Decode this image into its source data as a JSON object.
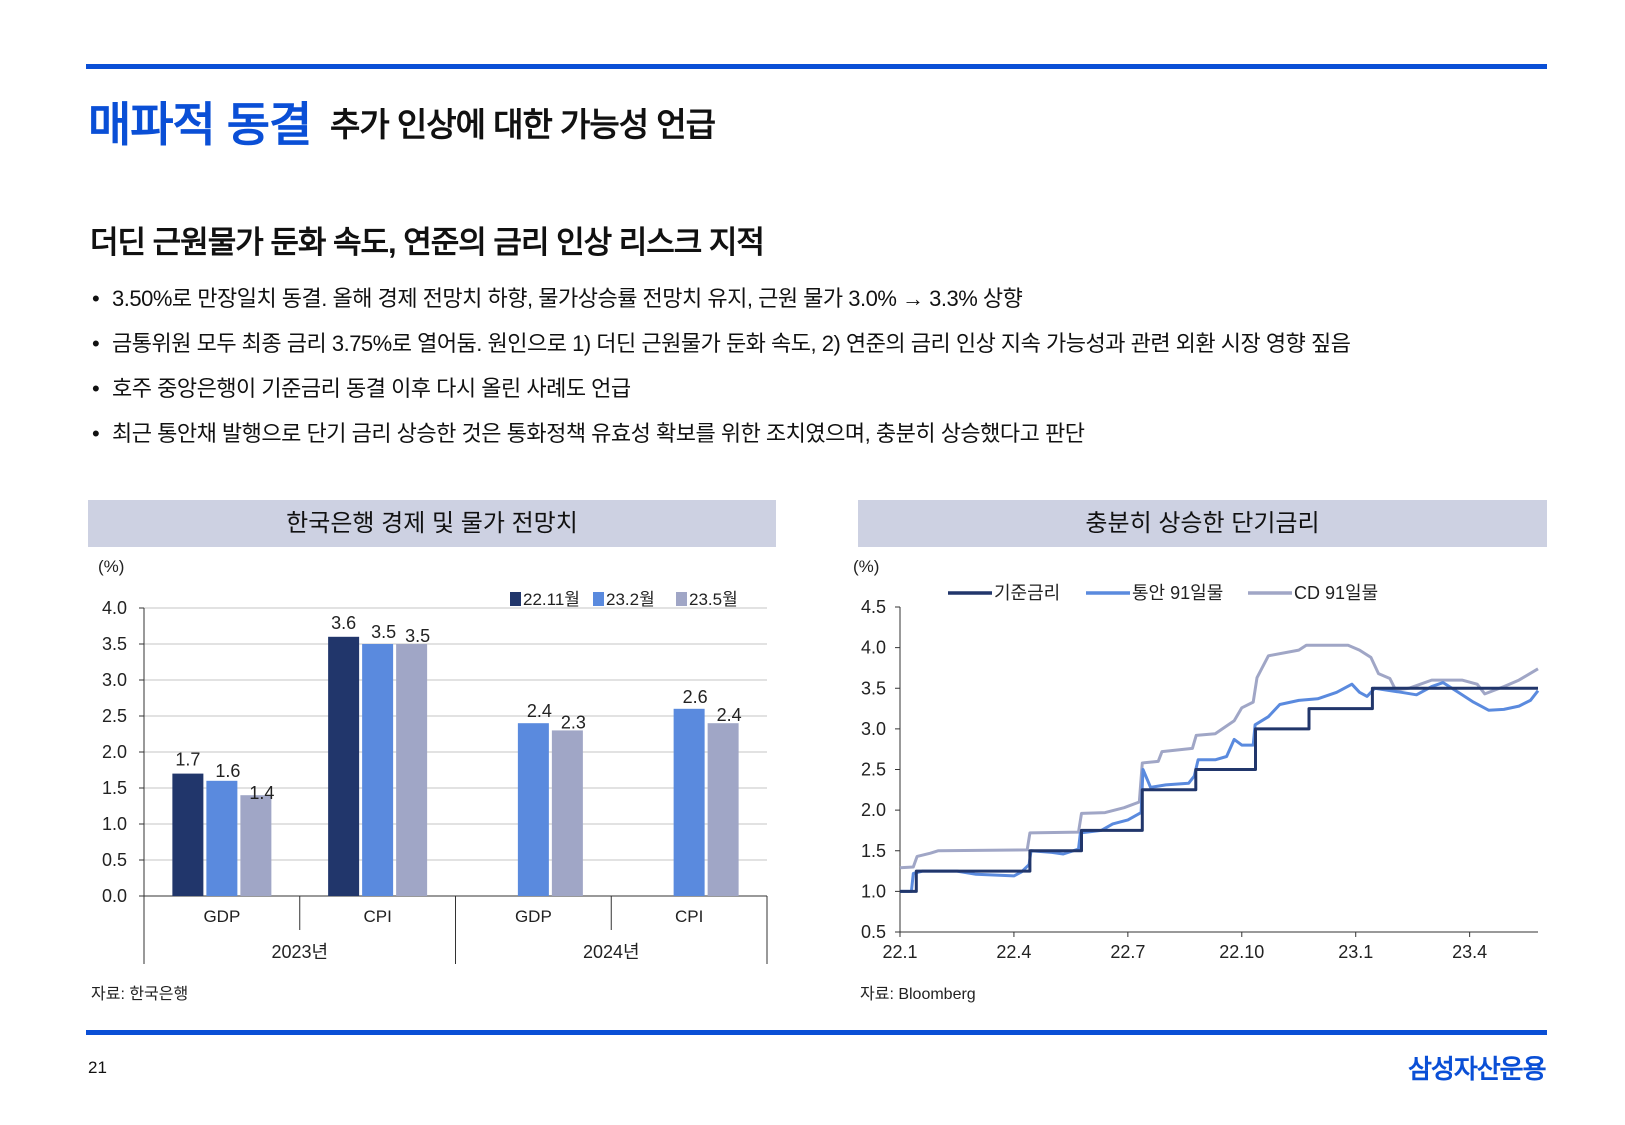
{
  "header": {
    "title": "매파적 동결",
    "subtitle": "추가 인상에 대한 가능성 언급"
  },
  "section_heading": "더딘 근원물가 둔화 속도, 연준의 금리 인상 리스크 지적",
  "bullets": [
    "3.50%로 만장일치 동결. 올해 경제 전망치 하향, 물가상승률 전망치 유지, 근원 물가 3.0% →  3.3% 상향",
    "금통위원 모두 최종 금리 3.75%로 열어둠. 원인으로 1) 더딘 근원물가 둔화 속도, 2) 연준의 금리 인상 지속 가능성과 관련 외환 시장 영향 짚음",
    "호주 중앙은행이 기준금리 동결 이후 다시 올린 사례도 언급",
    "최근 통안채 발행으로 단기 금리 상승한 것은 통화정책 유효성 확보를 위한 조치였으며, 충분히 상승했다고 판단"
  ],
  "bullet_marker": "•",
  "footer": {
    "page_number": "21",
    "logo_text": "삼성자산운용"
  },
  "colors": {
    "brand": "#0a4fd6",
    "navy": "#21366b",
    "blue": "#5a8ade",
    "gray": "#a0a6c6",
    "title_bg": "#cdd1e2"
  },
  "chart_data": [
    {
      "type": "bar",
      "title": "한국은행 경제 및 물가 전망치",
      "ylabel": "(%)",
      "source": "자료: 한국은행",
      "ylim": [
        0,
        4.0
      ],
      "yticks": [
        "0.0",
        "0.5",
        "1.0",
        "1.5",
        "2.0",
        "2.5",
        "3.0",
        "3.5",
        "4.0"
      ],
      "categories": [
        "GDP",
        "CPI",
        "GDP",
        "CPI"
      ],
      "groups": [
        "2023년",
        "2024년"
      ],
      "legend_position": "top-right",
      "series": [
        {
          "name": "22.11월",
          "color": "#21366b",
          "values": [
            1.7,
            3.6,
            null,
            null
          ]
        },
        {
          "name": "23.2월",
          "color": "#5a8ade",
          "values": [
            1.6,
            3.5,
            2.4,
            2.6
          ]
        },
        {
          "name": "23.5월",
          "color": "#a0a6c6",
          "values": [
            1.4,
            3.5,
            2.3,
            2.4
          ]
        }
      ],
      "grid": true
    },
    {
      "type": "line",
      "title": "충분히 상승한 단기금리",
      "ylabel": "(%)",
      "source": "자료: Bloomberg",
      "ylim": [
        0.5,
        4.5
      ],
      "yticks": [
        "0.5",
        "1.0",
        "1.5",
        "2.0",
        "2.5",
        "3.0",
        "3.5",
        "4.0",
        "4.5"
      ],
      "xticks": [
        "22.1",
        "22.4",
        "22.7",
        "22.10",
        "23.1",
        "23.4"
      ],
      "x_unit": "months since 2022-01",
      "xlim": [
        0,
        16.8
      ],
      "legend_position": "top",
      "grid": false,
      "series": [
        {
          "name": "기준금리",
          "color": "#21366b",
          "step": true,
          "points": [
            [
              0,
              1.0
            ],
            [
              0.43,
              1.25
            ],
            [
              3.42,
              1.5
            ],
            [
              4.78,
              1.75
            ],
            [
              6.38,
              2.25
            ],
            [
              7.79,
              2.5
            ],
            [
              9.36,
              3.0
            ],
            [
              10.77,
              3.25
            ],
            [
              12.44,
              3.5
            ],
            [
              16.8,
              3.5
            ]
          ]
        },
        {
          "name": "통안 91일물",
          "color": "#5a8ade",
          "step": false,
          "points": [
            [
              0,
              1.0
            ],
            [
              0.3,
              1.0
            ],
            [
              0.35,
              1.22
            ],
            [
              0.6,
              1.25
            ],
            [
              1.5,
              1.25
            ],
            [
              2,
              1.21
            ],
            [
              3,
              1.19
            ],
            [
              3.2,
              1.24
            ],
            [
              3.4,
              1.33
            ],
            [
              3.45,
              1.5
            ],
            [
              4.0,
              1.48
            ],
            [
              4.3,
              1.46
            ],
            [
              4.7,
              1.52
            ],
            [
              4.75,
              1.72
            ],
            [
              5.3,
              1.75
            ],
            [
              5.6,
              1.83
            ],
            [
              6.0,
              1.88
            ],
            [
              6.35,
              1.97
            ],
            [
              6.4,
              2.5
            ],
            [
              6.6,
              2.28
            ],
            [
              7.0,
              2.31
            ],
            [
              7.6,
              2.33
            ],
            [
              7.75,
              2.42
            ],
            [
              7.85,
              2.62
            ],
            [
              8.3,
              2.62
            ],
            [
              8.6,
              2.66
            ],
            [
              8.8,
              2.87
            ],
            [
              9.0,
              2.8
            ],
            [
              9.3,
              2.8
            ],
            [
              9.35,
              3.05
            ],
            [
              9.7,
              3.15
            ],
            [
              10.0,
              3.3
            ],
            [
              10.5,
              3.35
            ],
            [
              11.0,
              3.37
            ],
            [
              11.5,
              3.45
            ],
            [
              11.9,
              3.55
            ],
            [
              12.1,
              3.45
            ],
            [
              12.3,
              3.4
            ],
            [
              12.5,
              3.5
            ],
            [
              13.2,
              3.45
            ],
            [
              13.6,
              3.42
            ],
            [
              14.0,
              3.52
            ],
            [
              14.3,
              3.57
            ],
            [
              14.7,
              3.45
            ],
            [
              15.1,
              3.33
            ],
            [
              15.5,
              3.23
            ],
            [
              15.9,
              3.24
            ],
            [
              16.3,
              3.28
            ],
            [
              16.6,
              3.35
            ],
            [
              16.8,
              3.47
            ]
          ]
        },
        {
          "name": "CD 91일물",
          "color": "#a0a6c6",
          "step": false,
          "points": [
            [
              0,
              1.29
            ],
            [
              0.35,
              1.3
            ],
            [
              0.45,
              1.43
            ],
            [
              0.8,
              1.47
            ],
            [
              1.0,
              1.5
            ],
            [
              3.35,
              1.51
            ],
            [
              3.42,
              1.72
            ],
            [
              4.7,
              1.73
            ],
            [
              4.78,
              1.96
            ],
            [
              5.4,
              1.97
            ],
            [
              5.9,
              2.03
            ],
            [
              6.3,
              2.1
            ],
            [
              6.38,
              2.58
            ],
            [
              6.8,
              2.6
            ],
            [
              6.9,
              2.72
            ],
            [
              7.7,
              2.76
            ],
            [
              7.8,
              2.92
            ],
            [
              8.3,
              2.94
            ],
            [
              8.8,
              3.1
            ],
            [
              9.0,
              3.26
            ],
            [
              9.3,
              3.33
            ],
            [
              9.4,
              3.63
            ],
            [
              9.7,
              3.9
            ],
            [
              10.5,
              3.97
            ],
            [
              10.7,
              4.03
            ],
            [
              11.8,
              4.03
            ],
            [
              12.1,
              3.97
            ],
            [
              12.4,
              3.88
            ],
            [
              12.6,
              3.68
            ],
            [
              12.9,
              3.62
            ],
            [
              13.05,
              3.48
            ],
            [
              13.4,
              3.5
            ],
            [
              14.0,
              3.6
            ],
            [
              14.8,
              3.6
            ],
            [
              15.2,
              3.55
            ],
            [
              15.4,
              3.43
            ],
            [
              15.9,
              3.52
            ],
            [
              16.3,
              3.6
            ],
            [
              16.8,
              3.74
            ]
          ]
        }
      ]
    }
  ]
}
